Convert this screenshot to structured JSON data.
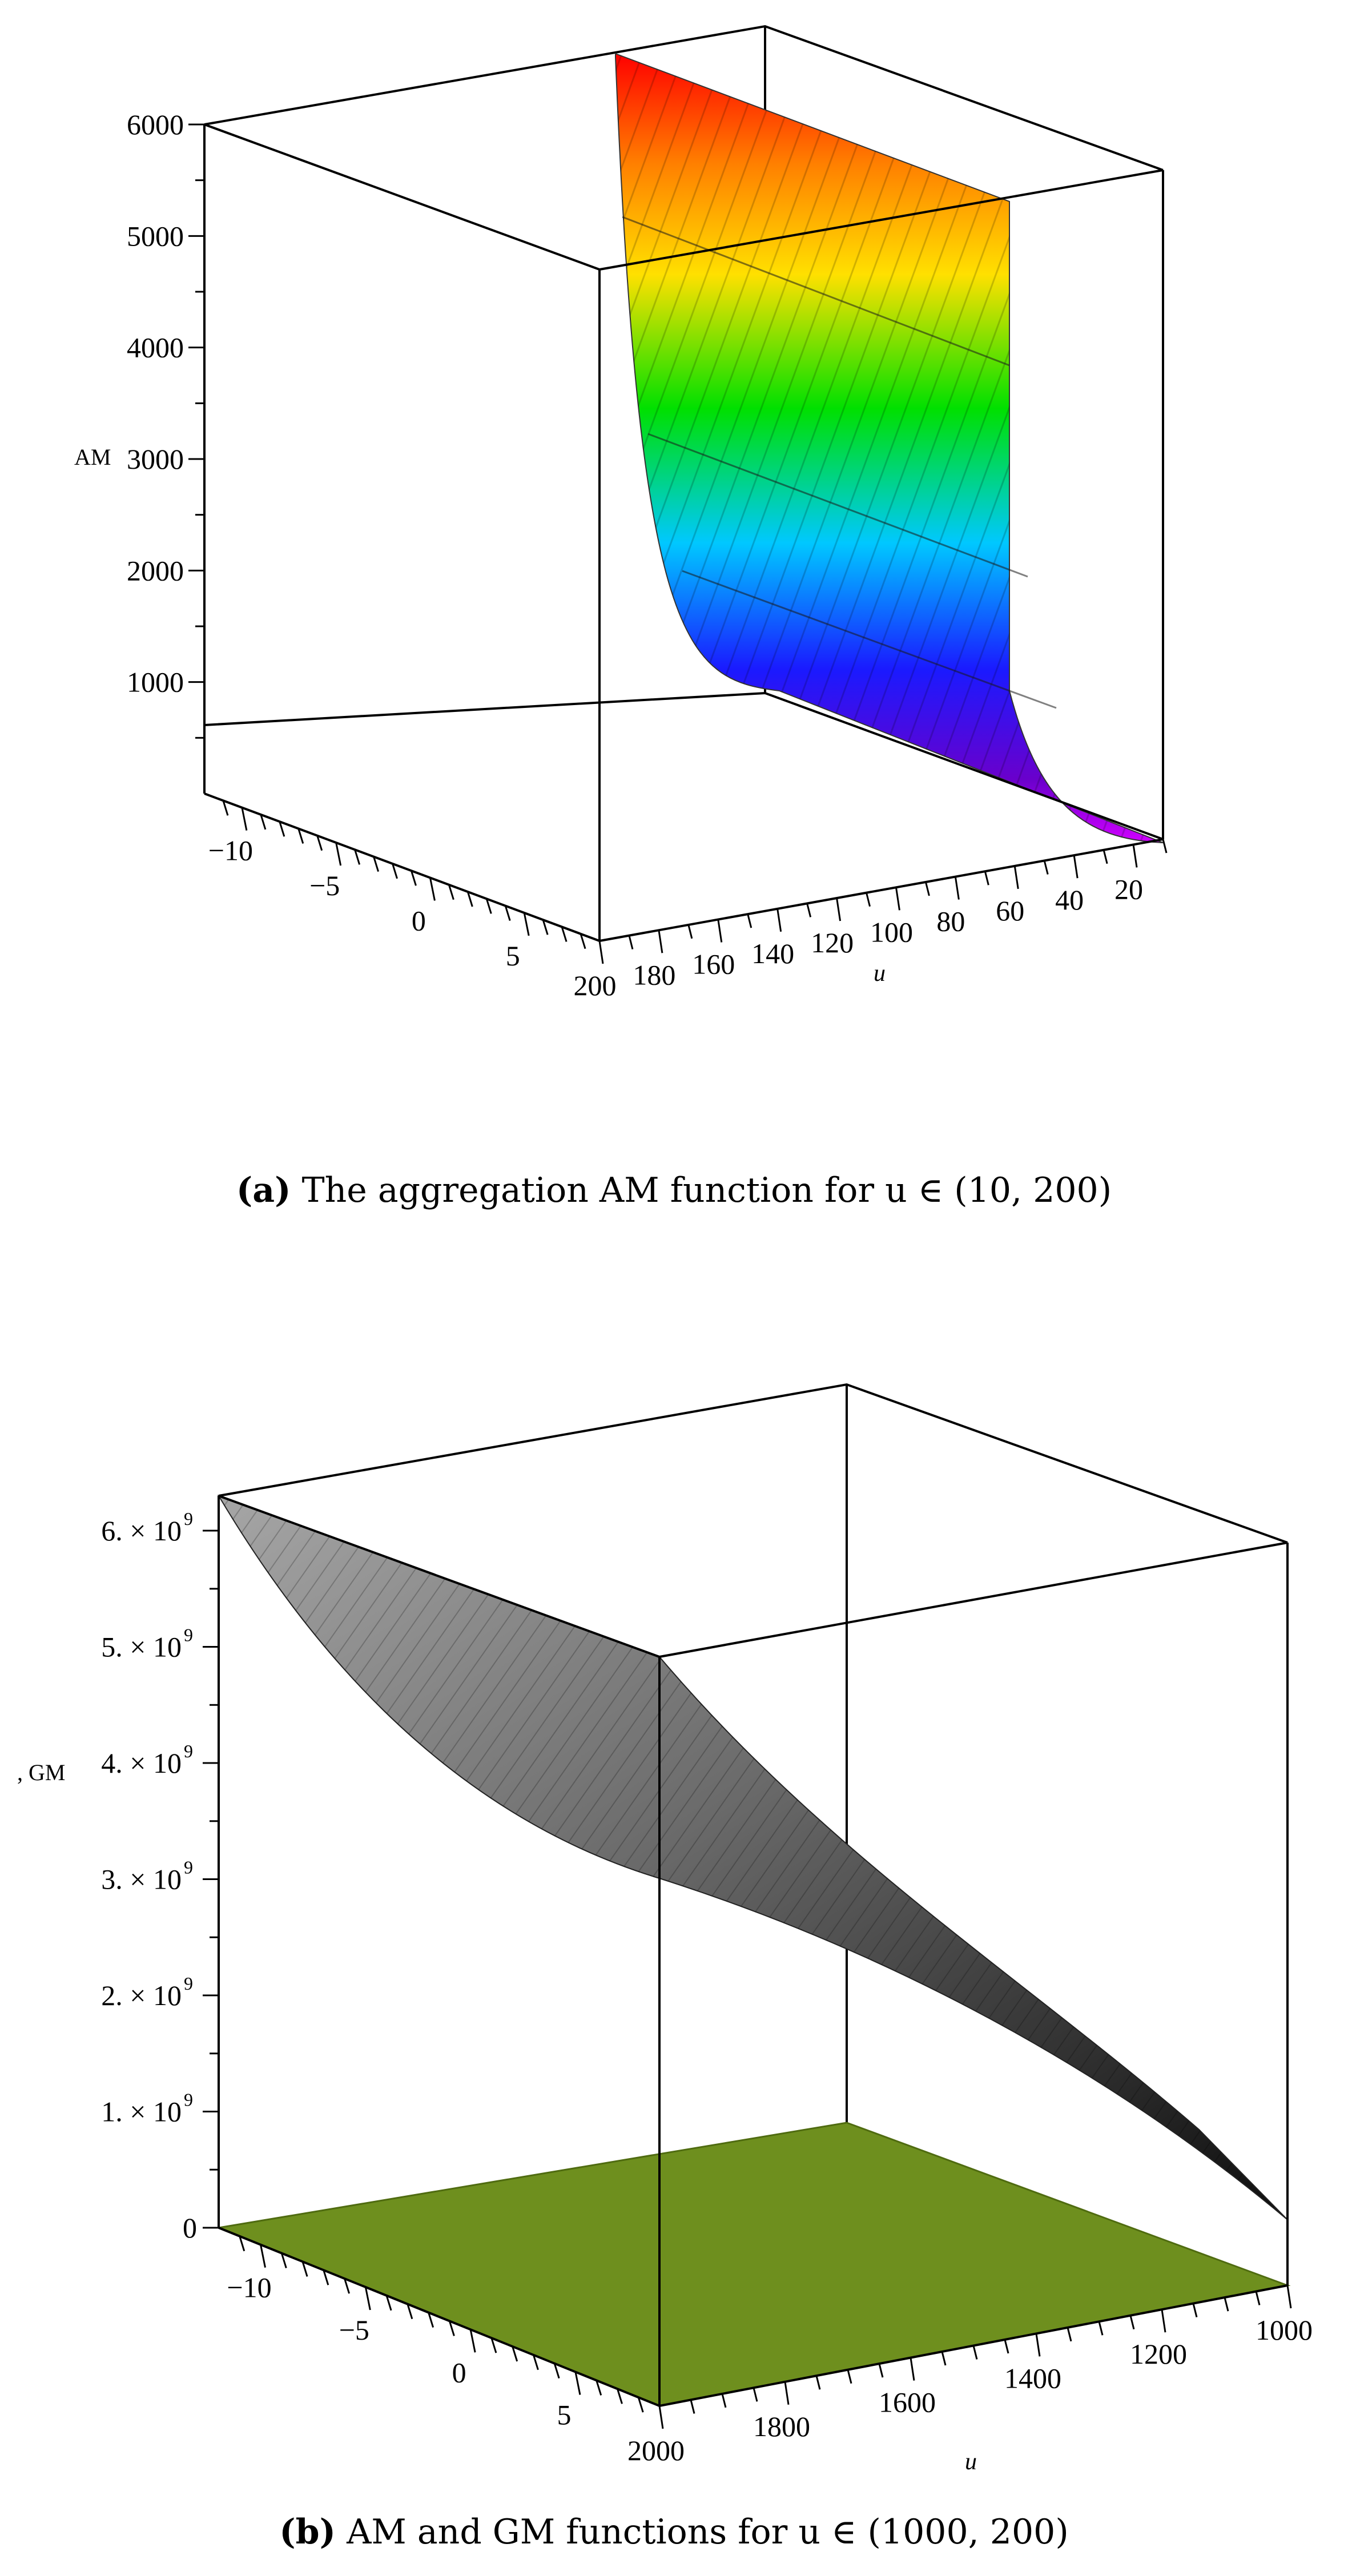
{
  "chart_data": [
    {
      "type": "surface",
      "caption_label": "(a)",
      "caption": "The aggregation AM function for u ∈ (10, 200)",
      "zlabel": "AM",
      "xlabel": "u",
      "x_ticks": [
        "200",
        "180",
        "160",
        "140",
        "120",
        "100",
        "80",
        "60",
        "40",
        "20"
      ],
      "y_ticks": [
        "−10",
        "−5",
        "0",
        "5"
      ],
      "z_ticks": [
        "1000",
        "2000",
        "3000",
        "4000",
        "5000",
        "6000"
      ],
      "xlim": [
        10,
        200
      ],
      "ylim": [
        -12,
        9
      ],
      "zlim": [
        0,
        6000
      ],
      "colormap": "rainbow",
      "series": [
        {
          "u": [
            10,
            20,
            30,
            40,
            50,
            60,
            70,
            80,
            100,
            120,
            140,
            160,
            180,
            200
          ],
          "AM": [
            6000,
            3700,
            2450,
            1700,
            1200,
            880,
            650,
            480,
            280,
            160,
            90,
            50,
            20,
            0
          ]
        }
      ]
    },
    {
      "type": "surface",
      "caption_label": "(b)",
      "caption": "AM and GM functions for u ∈ (1000, 200)",
      "zlabel": ", GM",
      "xlabel": "u",
      "x_ticks": [
        "2000",
        "1800",
        "1600",
        "1400",
        "1200",
        "1000"
      ],
      "y_ticks": [
        "−10",
        "−5",
        "0",
        "5"
      ],
      "z_ticks": [
        "0",
        "1. × 10",
        "2. × 10",
        "3. × 10",
        "4. × 10",
        "5. × 10",
        "6. × 10"
      ],
      "z_tick_exponent": "9",
      "xlim": [
        1000,
        2000
      ],
      "zlim": [
        0,
        6300000000
      ],
      "colors": {
        "GM": "#8c8c8c",
        "AM": "#6e8f1e"
      },
      "series": [
        {
          "name": "GM",
          "u": [
            1000,
            1100,
            1200,
            1300,
            1400,
            1500,
            1600,
            1700,
            1800,
            1900,
            2000
          ],
          "values": [
            0,
            60000000,
            250000000,
            560000000,
            1000000000,
            1560000000,
            2250000000,
            3060000000,
            4000000000,
            5060000000,
            6250000000
          ]
        },
        {
          "name": "AM",
          "u": [
            1000,
            2000
          ],
          "values": [
            0,
            0
          ]
        }
      ]
    }
  ]
}
